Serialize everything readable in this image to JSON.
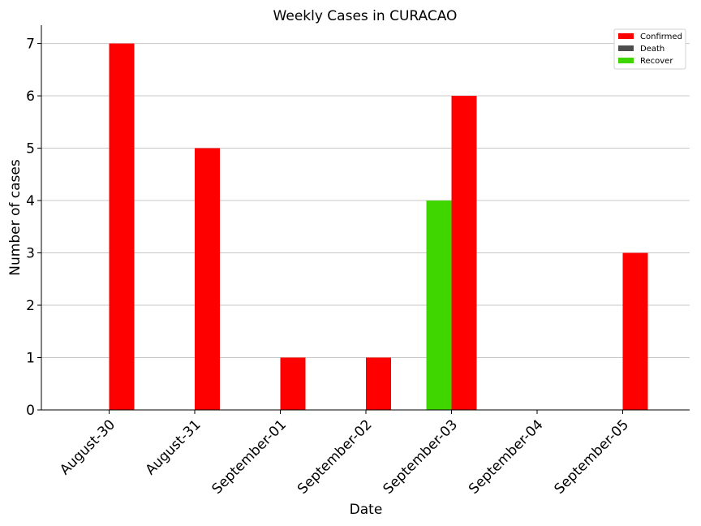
{
  "chart_data": {
    "type": "bar",
    "title": "Weekly Cases in CURACAO",
    "xlabel": "Date",
    "ylabel": "Number of cases",
    "categories": [
      "August-30",
      "August-31",
      "September-01",
      "September-02",
      "September-03",
      "September-04",
      "September-05"
    ],
    "ylim": [
      0,
      7.35
    ],
    "yticks": [
      0,
      1,
      2,
      3,
      4,
      5,
      6,
      7
    ],
    "grid": "horizontal",
    "legend_position": "top-right",
    "series": [
      {
        "name": "Recover",
        "color": "#3fd600",
        "values": [
          0,
          0,
          0,
          0,
          4,
          0,
          0
        ]
      },
      {
        "name": "Confirmed",
        "color": "#ff0000",
        "values": [
          7,
          5,
          1,
          1,
          6,
          0,
          3
        ]
      },
      {
        "name": "Death",
        "color": "#4d4d4d",
        "values": [
          0,
          0,
          0,
          0,
          0,
          0,
          0
        ]
      }
    ],
    "legend": [
      "Confirmed",
      "Death",
      "Recover"
    ]
  }
}
